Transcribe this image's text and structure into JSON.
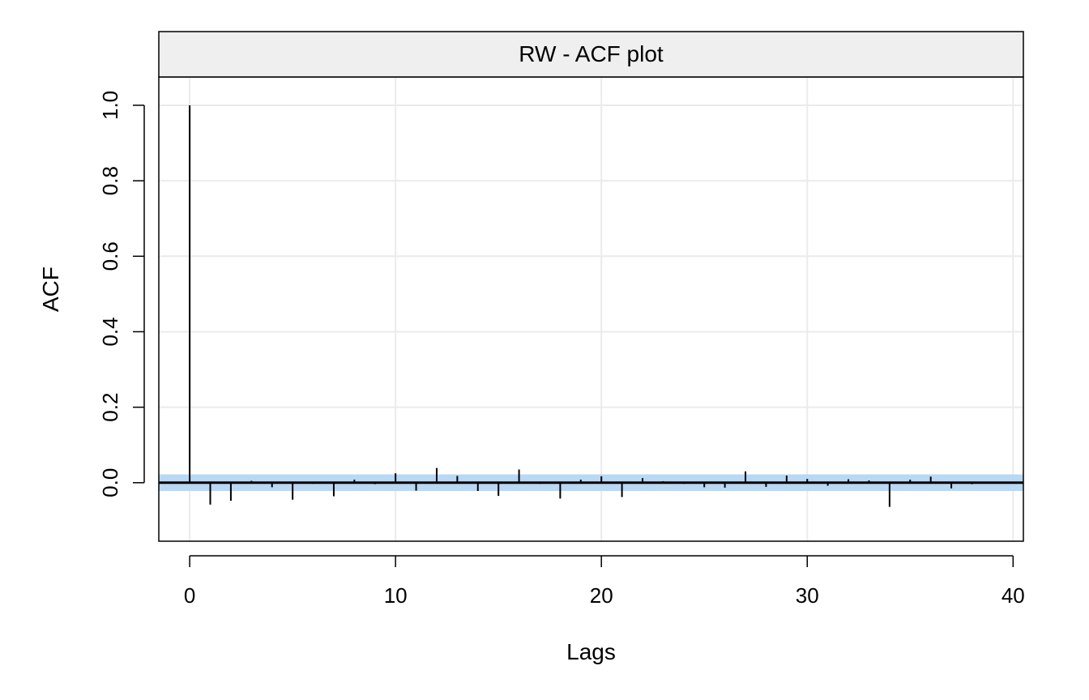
{
  "chart_data": {
    "type": "bar",
    "title": "RW - ACF plot",
    "xlabel": "Lags",
    "ylabel": "ACF",
    "xlim": [
      -1.5,
      40.5
    ],
    "ylim": [
      -0.155,
      1.075
    ],
    "x_ticks": [
      0,
      10,
      20,
      30,
      40
    ],
    "y_ticks": [
      0.0,
      0.2,
      0.4,
      0.6,
      0.8,
      1.0
    ],
    "y_tick_labels": [
      "0.0",
      "0.2",
      "0.4",
      "0.6",
      "0.8",
      "1.0"
    ],
    "x_tick_labels": [
      "0",
      "10",
      "20",
      "30",
      "40"
    ],
    "grid": true,
    "confidence_band": [
      -0.022,
      0.022
    ],
    "colors": {
      "band": "#b8d8f4",
      "strip": "#efefef",
      "grid": "#ebebeb",
      "lines": "#000000"
    },
    "series": [
      {
        "lags": [
          0,
          1,
          2,
          3,
          4,
          5,
          6,
          7,
          8,
          9,
          10,
          11,
          12,
          13,
          14,
          15,
          16,
          17,
          18,
          19,
          20,
          21,
          22,
          23,
          24,
          25,
          26,
          27,
          28,
          29,
          30,
          31,
          32,
          33,
          34,
          35,
          36,
          37,
          38,
          39,
          40
        ],
        "values": [
          1.0,
          -0.058,
          -0.048,
          0.005,
          -0.012,
          -0.045,
          -0.003,
          -0.036,
          0.008,
          -0.004,
          0.025,
          -0.021,
          0.039,
          0.018,
          -0.022,
          -0.035,
          0.035,
          -0.003,
          -0.042,
          0.008,
          0.017,
          -0.038,
          0.012,
          0.004,
          -0.003,
          -0.012,
          -0.013,
          0.03,
          -0.011,
          0.019,
          0.01,
          -0.008,
          0.009,
          0.006,
          -0.064,
          0.008,
          0.016,
          -0.015,
          -0.004,
          -0.002,
          0.0
        ]
      }
    ]
  }
}
